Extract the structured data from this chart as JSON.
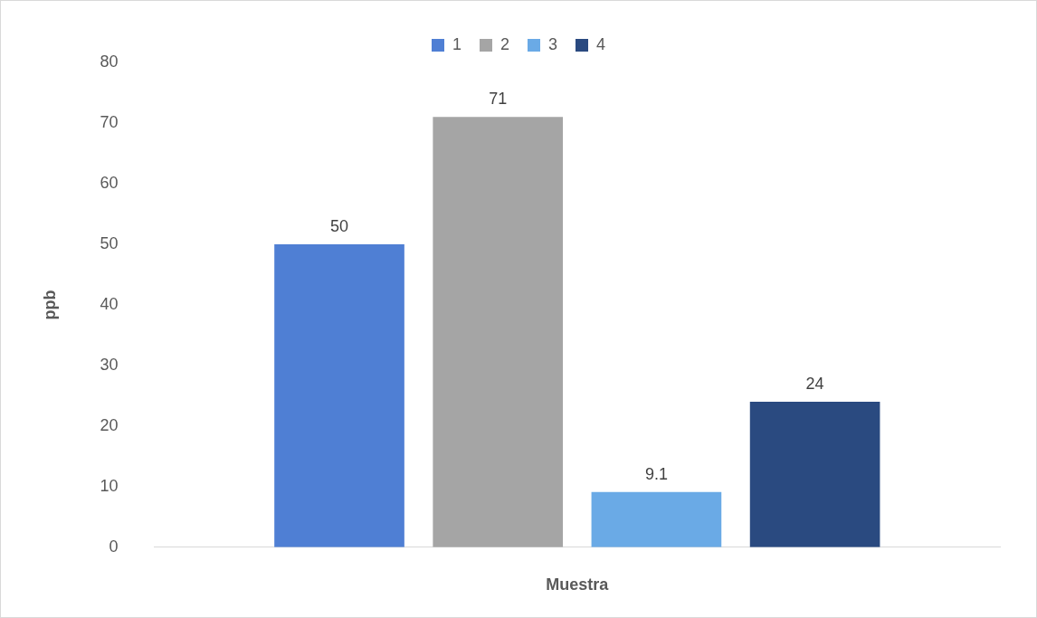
{
  "chart_data": {
    "type": "bar",
    "categories": [
      null
    ],
    "series": [
      {
        "name": "1",
        "color": "#4f7fd4",
        "values": [
          50
        ]
      },
      {
        "name": "2",
        "color": "#a5a5a5",
        "values": [
          71
        ]
      },
      {
        "name": "3",
        "color": "#6aaae6",
        "values": [
          9.1
        ]
      },
      {
        "name": "4",
        "color": "#2a4a80",
        "values": [
          24
        ]
      }
    ],
    "xlabel": "Muestra",
    "ylabel": "ppb",
    "ylim": [
      0,
      80
    ],
    "yticks": [
      0,
      10,
      20,
      30,
      40,
      50,
      60,
      70,
      80
    ],
    "grid": false,
    "legend": "top",
    "data_labels": true
  }
}
